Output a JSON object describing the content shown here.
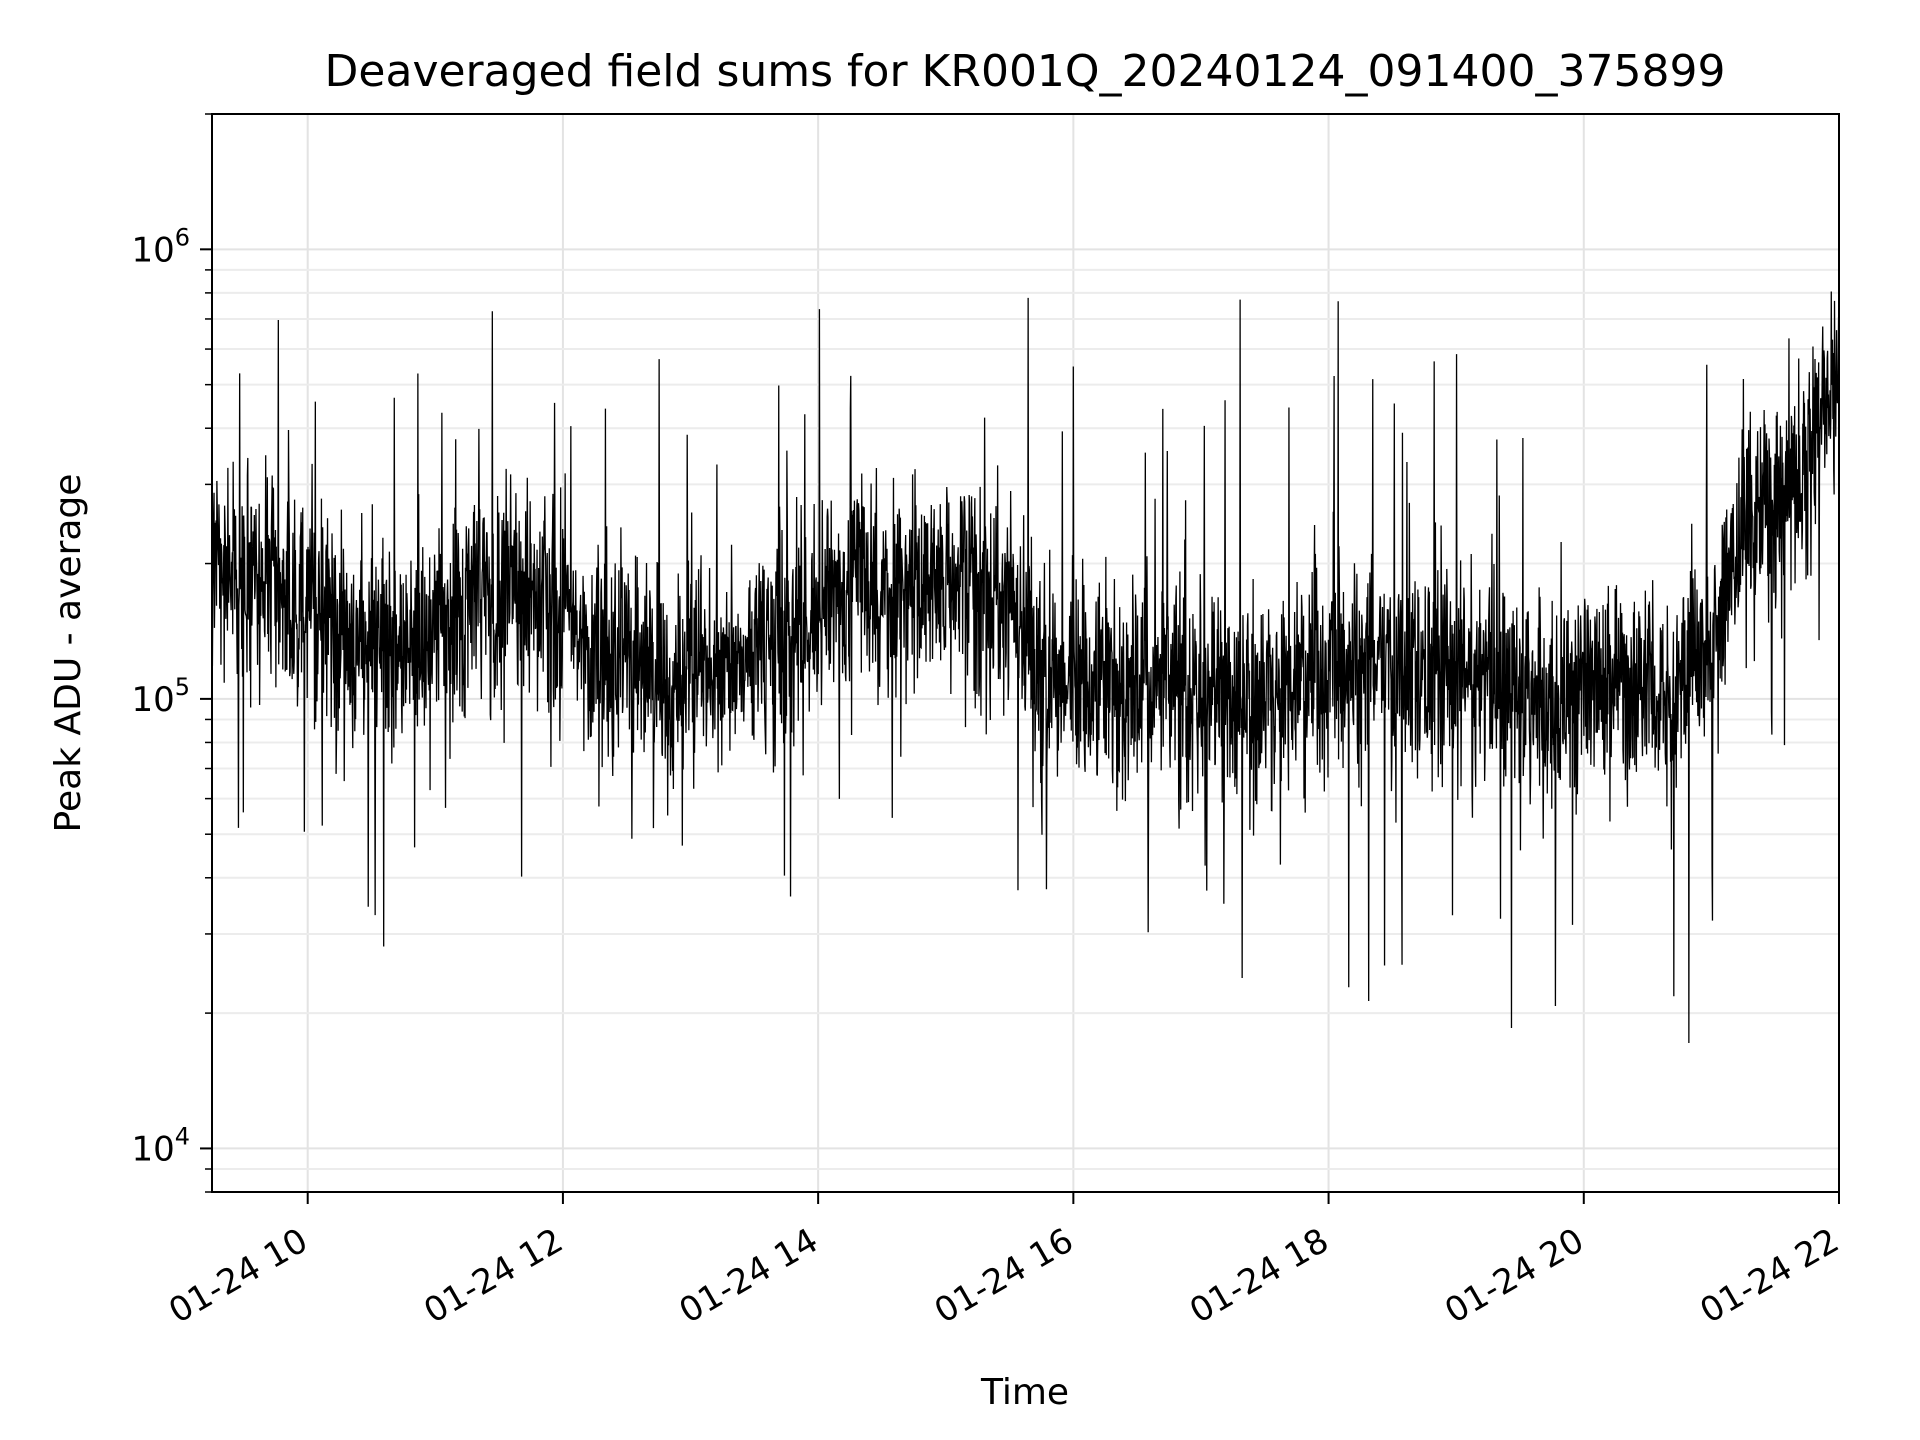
{
  "chart_data": {
    "type": "line",
    "title": "Deaveraged field sums for KR001Q_20240124_091400_375899",
    "xlabel": "Time",
    "ylabel": "Peak ADU - average",
    "y_scale": "log",
    "ylim": [
      8000,
      2000000
    ],
    "xlim_hours": [
      9.25,
      22.0
    ],
    "x_ticks": [
      {
        "hour": 10,
        "label": "01-24 10"
      },
      {
        "hour": 12,
        "label": "01-24 12"
      },
      {
        "hour": 14,
        "label": "01-24 14"
      },
      {
        "hour": 16,
        "label": "01-24 16"
      },
      {
        "hour": 18,
        "label": "01-24 18"
      },
      {
        "hour": 20,
        "label": "01-24 20"
      },
      {
        "hour": 22,
        "label": "01-24 22"
      }
    ],
    "y_ticks": [
      {
        "value": 10000,
        "base": "10",
        "exp": "4"
      },
      {
        "value": 100000,
        "base": "10",
        "exp": "5"
      },
      {
        "value": 1000000,
        "base": "10",
        "exp": "6"
      }
    ],
    "grid": true,
    "line_color": "#000000",
    "series": [
      {
        "x_hours": [
          9.25,
          9.75,
          10.25,
          10.75,
          11.25,
          11.75,
          12.25,
          12.75,
          13.25,
          13.75,
          14.25,
          14.75,
          15.25,
          15.5,
          15.75,
          16.25,
          16.75,
          17.25,
          17.75,
          18.25,
          18.75,
          19.25,
          19.75,
          20.25,
          20.75,
          21.0,
          21.25,
          21.5,
          21.75,
          22.0
        ],
        "y": [
          200000,
          180000,
          140000,
          130000,
          160000,
          180000,
          130000,
          110000,
          120000,
          140000,
          170000,
          180000,
          180000,
          170000,
          110000,
          110000,
          105000,
          100000,
          110000,
          120000,
          120000,
          110000,
          100000,
          110000,
          105000,
          140000,
          230000,
          280000,
          350000,
          500000
        ]
      }
    ]
  }
}
